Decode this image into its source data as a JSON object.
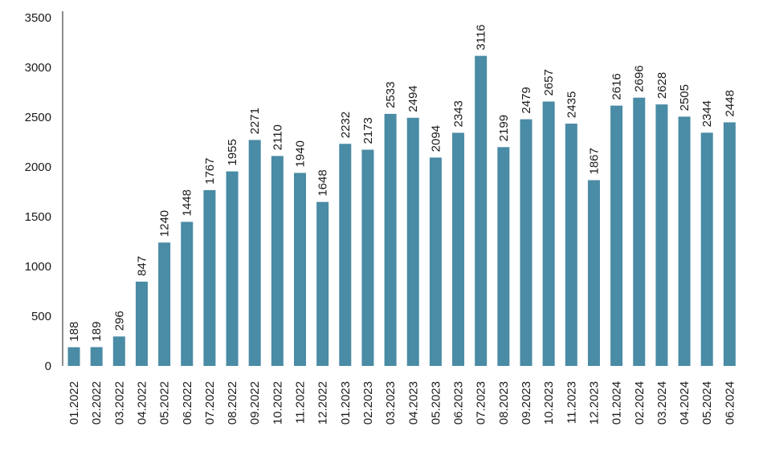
{
  "chart_data": {
    "type": "bar",
    "title": "",
    "xlabel": "",
    "ylabel": "",
    "ylim": [
      0,
      3500
    ],
    "yticks": [
      0,
      500,
      1000,
      1500,
      2000,
      2500,
      3000,
      3500
    ],
    "grid": false,
    "legend": "none",
    "bar_color": "#4a8ba5",
    "categories": [
      "01.2022",
      "02.2022",
      "03.2022",
      "04.2022",
      "05.2022",
      "06.2022",
      "07.2022",
      "08.2022",
      "09.2022",
      "10.2022",
      "11.2022",
      "12.2022",
      "01.2023",
      "02.2023",
      "03.2023",
      "04.2023",
      "05.2023",
      "06.2023",
      "07.2023",
      "08.2023",
      "09.2023",
      "10.2023",
      "11.2023",
      "12.2023",
      "01.2024",
      "02.2024",
      "03.2024",
      "04.2024",
      "05.2024",
      "06.2024"
    ],
    "values": [
      188,
      189,
      296,
      847,
      1240,
      1448,
      1767,
      1955,
      2271,
      2110,
      1940,
      1648,
      2232,
      2173,
      2533,
      2494,
      2094,
      2343,
      3116,
      2199,
      2479,
      2657,
      2435,
      1867,
      2616,
      2696,
      2628,
      2505,
      2344,
      2448
    ]
  }
}
